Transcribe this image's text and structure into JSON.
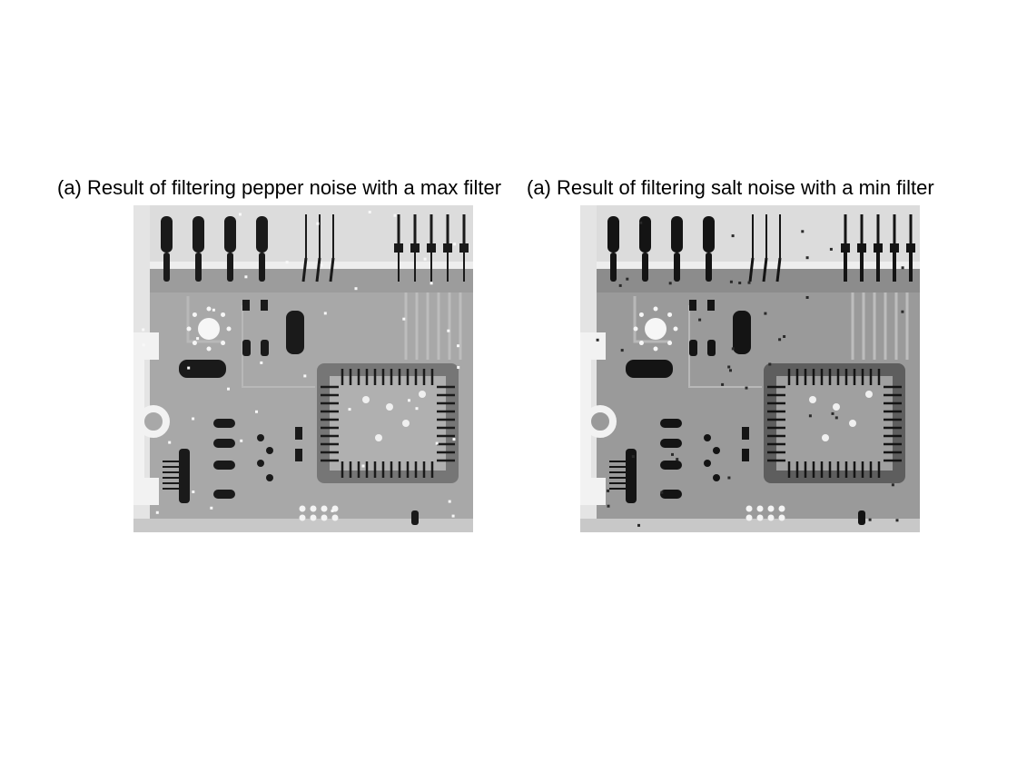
{
  "figure": {
    "panels": [
      {
        "title": "(a) Result of filtering pepper noise with a max filter",
        "image": "circuit-board-xray-grayscale",
        "variant": "max"
      },
      {
        "title": "(a) Result of filtering salt noise with a min filter",
        "image": "circuit-board-xray-grayscale",
        "variant": "min"
      }
    ]
  }
}
